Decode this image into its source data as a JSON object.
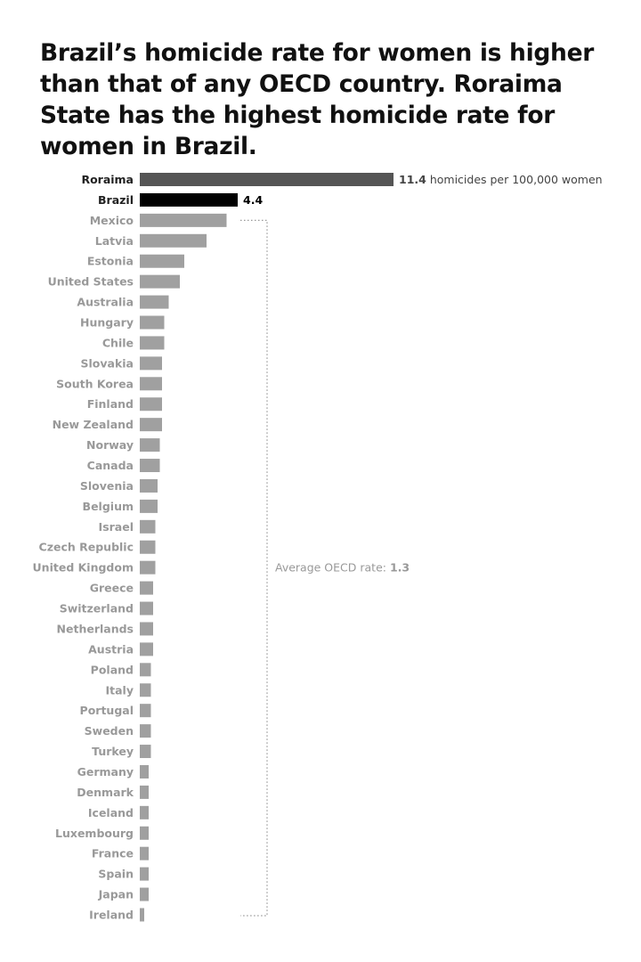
{
  "title": "Brazil’s homicide rate for women is higher than that of any OECD country. Roraima State has the highest homicide rate for women in Brazil.",
  "chart_data": {
    "type": "bar",
    "orientation": "horizontal",
    "categories": [
      "Roraima",
      "Brazil",
      "Mexico",
      "Latvia",
      "Estonia",
      "United States",
      "Australia",
      "Hungary",
      "Chile",
      "Slovakia",
      "South Korea",
      "Finland",
      "New Zealand",
      "Norway",
      "Canada",
      "Slovenia",
      "Belgium",
      "Israel",
      "Czech Republic",
      "United Kingdom",
      "Greece",
      "Switzerland",
      "Netherlands",
      "Austria",
      "Poland",
      "Italy",
      "Portugal",
      "Sweden",
      "Turkey",
      "Germany",
      "Denmark",
      "Iceland",
      "Luxembourg",
      "France",
      "Spain",
      "Japan",
      "Ireland"
    ],
    "values": [
      11.4,
      4.4,
      3.9,
      3.0,
      2.0,
      1.8,
      1.3,
      1.1,
      1.1,
      1.0,
      1.0,
      1.0,
      1.0,
      0.9,
      0.9,
      0.8,
      0.8,
      0.7,
      0.7,
      0.7,
      0.6,
      0.6,
      0.6,
      0.6,
      0.5,
      0.5,
      0.5,
      0.5,
      0.5,
      0.4,
      0.4,
      0.4,
      0.4,
      0.4,
      0.4,
      0.4,
      0.2
    ],
    "highlighted": {
      "Roraima": "#555555",
      "Brazil": "#000000"
    },
    "default_color": "#a0a0a0",
    "data_labels": {
      "Roraima": {
        "value": "11.4",
        "suffix": " homicides per 100,000 women"
      },
      "Brazil": {
        "value": "4.4",
        "suffix": ""
      }
    },
    "bracket": {
      "from": "Mexico",
      "to": "Ireland",
      "label": "Average OECD rate: ",
      "value": "1.3"
    },
    "grid": false,
    "xlim": [
      0,
      11.4
    ]
  }
}
